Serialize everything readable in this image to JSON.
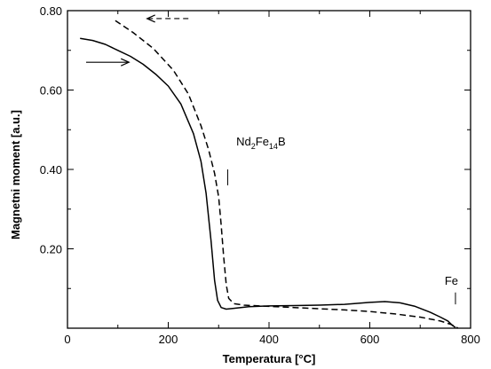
{
  "chart_data": {
    "type": "line",
    "xlabel": "Temperatura [°C]",
    "ylabel": "Magnetni moment [a.u.]",
    "xlim": [
      0,
      800
    ],
    "ylim": [
      0,
      0.8
    ],
    "x_ticks": [
      {
        "value": 0,
        "label": "0"
      },
      {
        "value": 200,
        "label": "200"
      },
      {
        "value": 400,
        "label": "400"
      },
      {
        "value": 600,
        "label": "600"
      },
      {
        "value": 800,
        "label": "800"
      }
    ],
    "y_ticks": [
      {
        "value": 0.2,
        "label": "0.20"
      },
      {
        "value": 0.4,
        "label": "0.40"
      },
      {
        "value": 0.6,
        "label": "0.60"
      },
      {
        "value": 0.8,
        "label": "0.80"
      }
    ],
    "series": [
      {
        "style": "solid",
        "color": "#000000",
        "points": [
          [
            25,
            0.73
          ],
          [
            50,
            0.725
          ],
          [
            75,
            0.715
          ],
          [
            100,
            0.7
          ],
          [
            125,
            0.685
          ],
          [
            150,
            0.665
          ],
          [
            175,
            0.64
          ],
          [
            200,
            0.61
          ],
          [
            225,
            0.565
          ],
          [
            250,
            0.49
          ],
          [
            265,
            0.42
          ],
          [
            275,
            0.34
          ],
          [
            285,
            0.22
          ],
          [
            292,
            0.12
          ],
          [
            298,
            0.07
          ],
          [
            305,
            0.052
          ],
          [
            315,
            0.048
          ],
          [
            330,
            0.05
          ],
          [
            360,
            0.054
          ],
          [
            400,
            0.056
          ],
          [
            450,
            0.057
          ],
          [
            500,
            0.058
          ],
          [
            550,
            0.06
          ],
          [
            600,
            0.065
          ],
          [
            630,
            0.067
          ],
          [
            660,
            0.064
          ],
          [
            690,
            0.055
          ],
          [
            720,
            0.04
          ],
          [
            740,
            0.028
          ],
          [
            755,
            0.018
          ],
          [
            765,
            0.006
          ],
          [
            770,
            0.002
          ]
        ]
      },
      {
        "style": "dashed",
        "color": "#000000",
        "points": [
          [
            95,
            0.775
          ],
          [
            130,
            0.745
          ],
          [
            170,
            0.705
          ],
          [
            210,
            0.65
          ],
          [
            240,
            0.59
          ],
          [
            265,
            0.51
          ],
          [
            280,
            0.45
          ],
          [
            292,
            0.39
          ],
          [
            300,
            0.33
          ],
          [
            305,
            0.26
          ],
          [
            310,
            0.18
          ],
          [
            315,
            0.11
          ],
          [
            320,
            0.075
          ],
          [
            330,
            0.062
          ],
          [
            350,
            0.058
          ],
          [
            400,
            0.055
          ],
          [
            450,
            0.052
          ],
          [
            500,
            0.049
          ],
          [
            550,
            0.046
          ],
          [
            600,
            0.042
          ],
          [
            650,
            0.036
          ],
          [
            700,
            0.028
          ],
          [
            740,
            0.018
          ],
          [
            760,
            0.01
          ],
          [
            770,
            0.004
          ],
          [
            775,
            0.0
          ]
        ]
      }
    ],
    "annotations": [
      {
        "type": "label",
        "text_main": "Nd",
        "sub1": "2",
        "text_mid": "Fe",
        "sub2": "14",
        "text_end": "B",
        "x": 335,
        "y": 0.46
      },
      {
        "type": "marker",
        "x": 318,
        "y_from": 0.36,
        "y_to": 0.4
      },
      {
        "type": "label",
        "text": "Fe",
        "x": 762,
        "y": 0.11
      },
      {
        "type": "marker",
        "x": 770,
        "y_from": 0.06,
        "y_to": 0.09
      },
      {
        "type": "arrow",
        "style": "solid",
        "direction": "right",
        "x_from": 37,
        "x_to": 122,
        "y": 0.67
      },
      {
        "type": "arrow",
        "style": "dashed",
        "direction": "left",
        "x_from": 240,
        "x_to": 158,
        "y": 0.78
      }
    ],
    "grid": false
  }
}
